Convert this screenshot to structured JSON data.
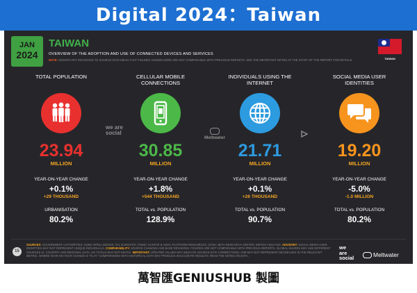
{
  "banner": {
    "title": "Digital  2024：Taiwan"
  },
  "slide": {
    "badge": {
      "month": "JAN",
      "year": "2024"
    },
    "title": "TAIWAN",
    "subtitle": "OVERVIEW OF THE ADOPTION AND USE OF CONNECTED DEVICES AND SERVICES",
    "note_label": "NOTE:",
    "note_text": "SIGNIFICANT REVISIONS TO SOURCE DATA MEAN THAT FIGURES SHOWN HERE ARE NOT COMPARABLE WITH PREVIOUS REPORTS. SEE THE IMPORTANT NOTES AT THE START OF THE REPORT FOR DETAILS.",
    "flag_label": "TAIWAN",
    "columns": [
      {
        "label": "TOTAL POPULATION",
        "icon": "people-icon",
        "color": "#e8312f",
        "value": "23.94",
        "unit": "MILLION",
        "yoy_label": "YEAR-ON-YEAR CHANGE",
        "yoy": "+0.1%",
        "yoy_abs": "+29 THOUSAND",
        "ratio_label": "URBANISATION",
        "ratio": "80.2%"
      },
      {
        "label": "CELLULAR MOBILE CONNECTIONS",
        "icon": "mobile-phone-icon",
        "color": "#4cb848",
        "value": "30.85",
        "unit": "MILLION",
        "yoy_label": "YEAR-ON-YEAR CHANGE",
        "yoy": "+1.8%",
        "yoy_abs": "+544 THOUSAND",
        "ratio_label": "TOTAL vs. POPULATION",
        "ratio": "128.9%"
      },
      {
        "label": "INDIVIDUALS USING THE INTERNET",
        "icon": "globe-icon",
        "color": "#2d9be0",
        "value": "21.71",
        "unit": "MILLION",
        "yoy_label": "YEAR-ON-YEAR CHANGE",
        "yoy": "+0.1%",
        "yoy_abs": "+26 THOUSAND",
        "ratio_label": "TOTAL vs. POPULATION",
        "ratio": "90.7%"
      },
      {
        "label": "SOCIAL MEDIA USER IDENTITIES",
        "icon": "chat-bubbles-icon",
        "color": "#f7941d",
        "value": "19.20",
        "unit": "MILLION",
        "yoy_label": "YEAR-ON-YEAR CHANGE",
        "yoy": "-5.0%",
        "yoy_abs": "-1.0 MILLION",
        "ratio_label": "TOTAL vs. POPULATION",
        "ratio": "80.2%"
      }
    ],
    "watermark_was": "we are social",
    "watermark_mw": "Meltwater",
    "page_number": "15",
    "sources_label": "SOURCES:",
    "sources_text": "GOVERNMENT AUTHORITIES; GSMA INTELLIGENCE; ITU; EUROSTAT; CNNIC; KANTAR & IAMAI; PLATFORM RESOURCES; OCDH; BETA RESEARCH CENTER; KEPIOS ANALYSIS.",
    "advisory_label": "ADVISORY:",
    "advisory_text": "SOCIAL MEDIA USER IDENTITIES MAY NOT REPRESENT UNIQUE INDIVIDUALS.",
    "comparability_label": "COMPARABILITY:",
    "comparability_text": "SOURCE CHANGES AND BASE REVISIONS. FIGURES ARE NOT COMPARABLE WITH PREVIOUS REPORTS. GLOBAL SHARES MAY USE DIFFERENT SOURCES vs. COUNTRY AND REGIONAL DATA, SO TOTALS MAY NOT MATCH.",
    "important_label": "IMPORTANT:",
    "important_text": "UPDATED VALUES MAY INDICATE SOURCE DATA CORRECTIONS, AND MAY NOT REPRESENT DECREASES IN THE RELEVANT METRIC. WHERE YEAR-ON-YEAR CHANGE IS \"FLAT,\" COMPARISONS WITH HISTORICAL DATA MAY PRODUCE INACCURATE RESULTS. READ THE NOTES ON DATA.",
    "brand_was": [
      "we",
      "are",
      "social"
    ],
    "brand_mw": "Meltwater"
  },
  "bottom_text": "萬智匯GENIUSHUB 製圖"
}
